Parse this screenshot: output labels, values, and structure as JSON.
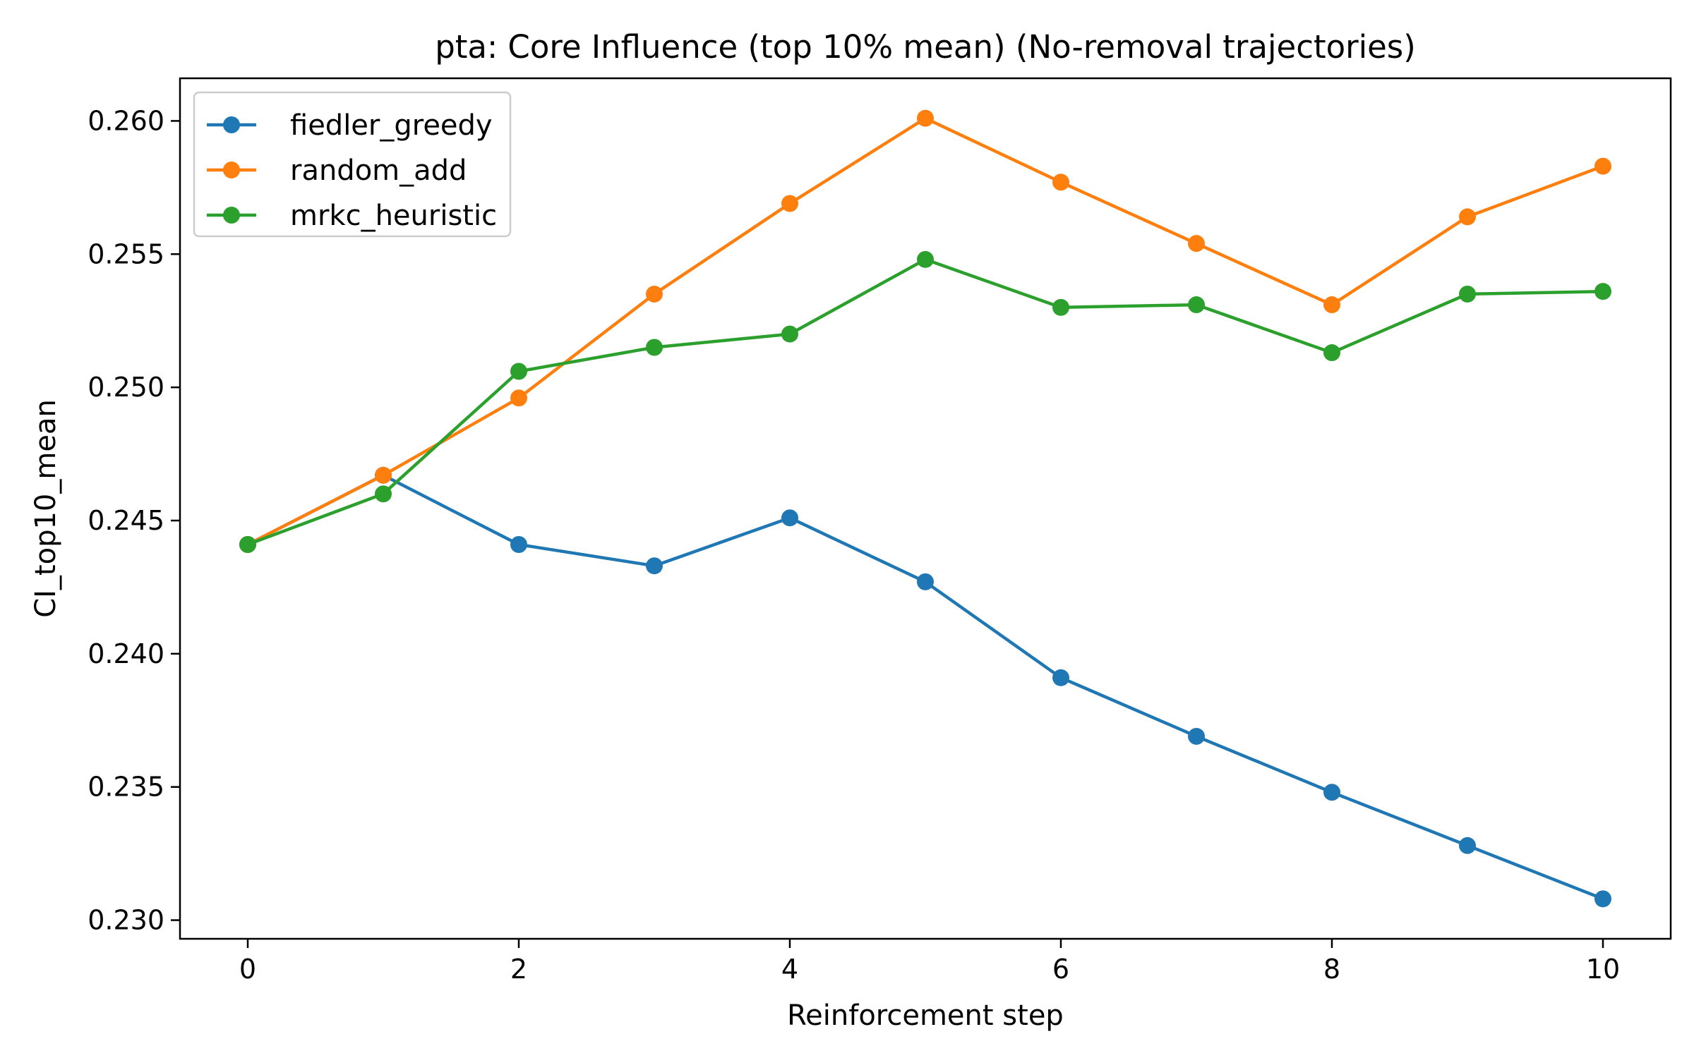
{
  "chart_data": {
    "type": "line",
    "title": "pta: Core Influence (top 10% mean) (No-removal trajectories)",
    "xlabel": "Reinforcement step",
    "ylabel": "CI_top10_mean",
    "x": [
      0,
      1,
      2,
      3,
      4,
      5,
      6,
      7,
      8,
      9,
      10
    ],
    "xlim": [
      -0.5,
      10.5
    ],
    "ylim": [
      0.2293,
      0.2616
    ],
    "xticks": [
      0,
      2,
      4,
      6,
      8,
      10
    ],
    "xtick_labels": [
      "0",
      "2",
      "4",
      "6",
      "8",
      "10"
    ],
    "yticks": [
      0.23,
      0.235,
      0.24,
      0.245,
      0.25,
      0.255,
      0.26
    ],
    "ytick_labels": [
      "0.230",
      "0.235",
      "0.240",
      "0.245",
      "0.250",
      "0.255",
      "0.260"
    ],
    "grid": false,
    "legend_position": "top-left",
    "series": [
      {
        "name": "fiedler_greedy",
        "color": "#1f77b4",
        "marker": "circle",
        "values": [
          0.2441,
          0.2467,
          0.2441,
          0.2433,
          0.2451,
          0.2427,
          0.2391,
          0.2369,
          0.2348,
          0.2328,
          0.2308
        ]
      },
      {
        "name": "random_add",
        "color": "#ff7f0e",
        "marker": "circle",
        "values": [
          0.2441,
          0.2467,
          0.2496,
          0.2535,
          0.2569,
          0.2601,
          0.2577,
          0.2554,
          0.2531,
          0.2564,
          0.2583
        ]
      },
      {
        "name": "mrkc_heuristic",
        "color": "#2ca02c",
        "marker": "circle",
        "values": [
          0.2441,
          0.246,
          0.2506,
          0.2515,
          0.252,
          0.2548,
          0.253,
          0.2531,
          0.2513,
          0.2535,
          0.2536
        ]
      }
    ]
  }
}
